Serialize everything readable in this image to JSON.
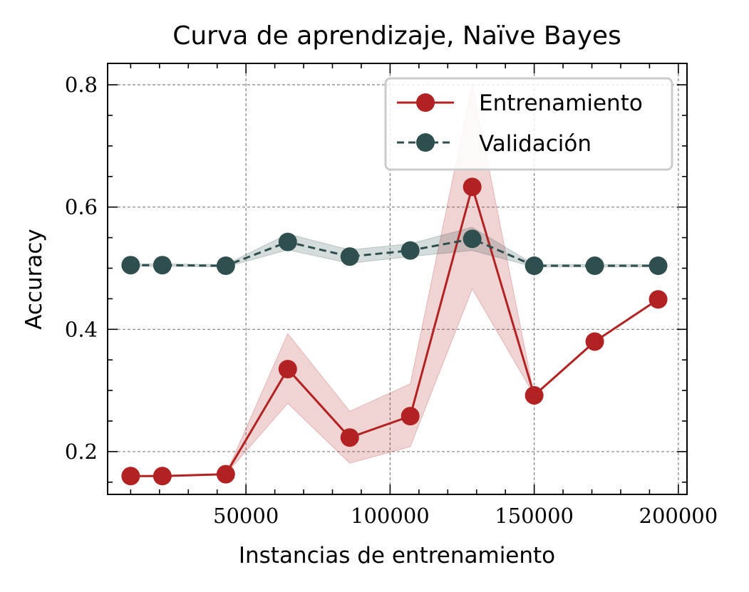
{
  "chart_data": {
    "type": "line",
    "title": "Curva de aprendizaje, Naïve Bayes",
    "xlabel": "Instancias de entrenamiento",
    "ylabel": "Accuracy",
    "xlim": [
      2000,
      203000
    ],
    "ylim": [
      0.13,
      0.835
    ],
    "xticks": [
      50000,
      100000,
      150000,
      200000
    ],
    "xtick_labels": [
      "50000",
      "100000",
      "150000",
      "200000"
    ],
    "yticks": [
      0.2,
      0.4,
      0.6,
      0.8
    ],
    "ytick_labels": [
      "0.2",
      "0.4",
      "0.6",
      "0.8"
    ],
    "grid": true,
    "legend_position": "top-right",
    "x": [
      10000,
      21000,
      43000,
      64500,
      86000,
      107000,
      128500,
      150000,
      171000,
      193000
    ],
    "series": [
      {
        "name": "Entrenamiento",
        "color": "#b22222",
        "line_style": "solid",
        "marker": "circle",
        "values": [
          0.16,
          0.16,
          0.163,
          0.335,
          0.223,
          0.258,
          0.633,
          0.292,
          0.38,
          0.449
        ],
        "band_lower": [
          0.16,
          0.16,
          0.163,
          0.279,
          0.181,
          0.208,
          0.466,
          0.292,
          0.38,
          0.449
        ],
        "band_upper": [
          0.16,
          0.16,
          0.163,
          0.393,
          0.266,
          0.311,
          0.8,
          0.292,
          0.38,
          0.449
        ]
      },
      {
        "name": "Validación",
        "color": "#2f4f4f",
        "line_style": "dashed",
        "marker": "circle",
        "values": [
          0.505,
          0.505,
          0.504,
          0.543,
          0.519,
          0.529,
          0.548,
          0.504,
          0.504,
          0.504
        ],
        "band_lower": [
          0.503,
          0.503,
          0.502,
          0.53,
          0.508,
          0.519,
          0.529,
          0.502,
          0.502,
          0.502
        ],
        "band_upper": [
          0.507,
          0.507,
          0.506,
          0.556,
          0.53,
          0.54,
          0.567,
          0.506,
          0.506,
          0.506
        ]
      }
    ]
  }
}
